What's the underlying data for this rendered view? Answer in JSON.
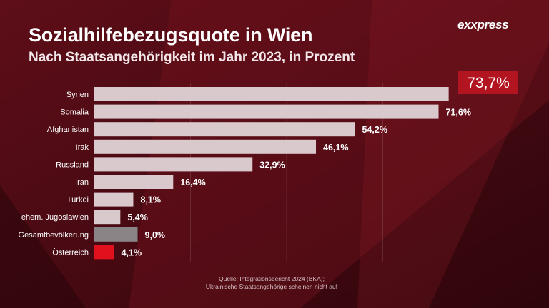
{
  "header": {
    "title": "Sozialhilfebezugsquote in Wien",
    "subtitle": "Nach Staatsangehörigkeit im Jahr 2023, in Prozent",
    "logo": "exxpress"
  },
  "chart_data": {
    "type": "bar",
    "orientation": "horizontal",
    "title": "Sozialhilfebezugsquote in Wien",
    "subtitle": "Nach Staatsangehörigkeit im Jahr 2023, in Prozent",
    "categories": [
      "Syrien",
      "Somalia",
      "Afghanistan",
      "Irak",
      "Russland",
      "Iran",
      "Türkei",
      "ehem. Jugoslawien",
      "Gesamtbevölkerung",
      "Österreich"
    ],
    "values": [
      73.7,
      71.6,
      54.2,
      46.1,
      32.9,
      16.4,
      8.1,
      5.4,
      9.0,
      4.1
    ],
    "value_labels": [
      "73,7%",
      "71,6%",
      "54,2%",
      "46,1%",
      "32,9%",
      "16,4%",
      "8,1%",
      "5,4%",
      "9,0%",
      "4,1%"
    ],
    "bar_colors": [
      "#d9c9cc",
      "#d9c9cc",
      "#d9c9cc",
      "#d9c9cc",
      "#d9c9cc",
      "#d9c9cc",
      "#d9c9cc",
      "#d9c9cc",
      "#8a8486",
      "#e0101c"
    ],
    "highlight_index": 0,
    "highlight_color": "#b31520",
    "xlim": [
      0,
      80
    ],
    "grid": true,
    "legend": false
  },
  "source": {
    "line1": "Quelle: Integrationsbericht 2024 (BKA);",
    "line2": "Ukrainische Staatsangehörige scheinen nicht auf"
  },
  "colors": {
    "background_dark": "#3e0810",
    "background_light": "#7a1522",
    "text": "#ffffff"
  }
}
